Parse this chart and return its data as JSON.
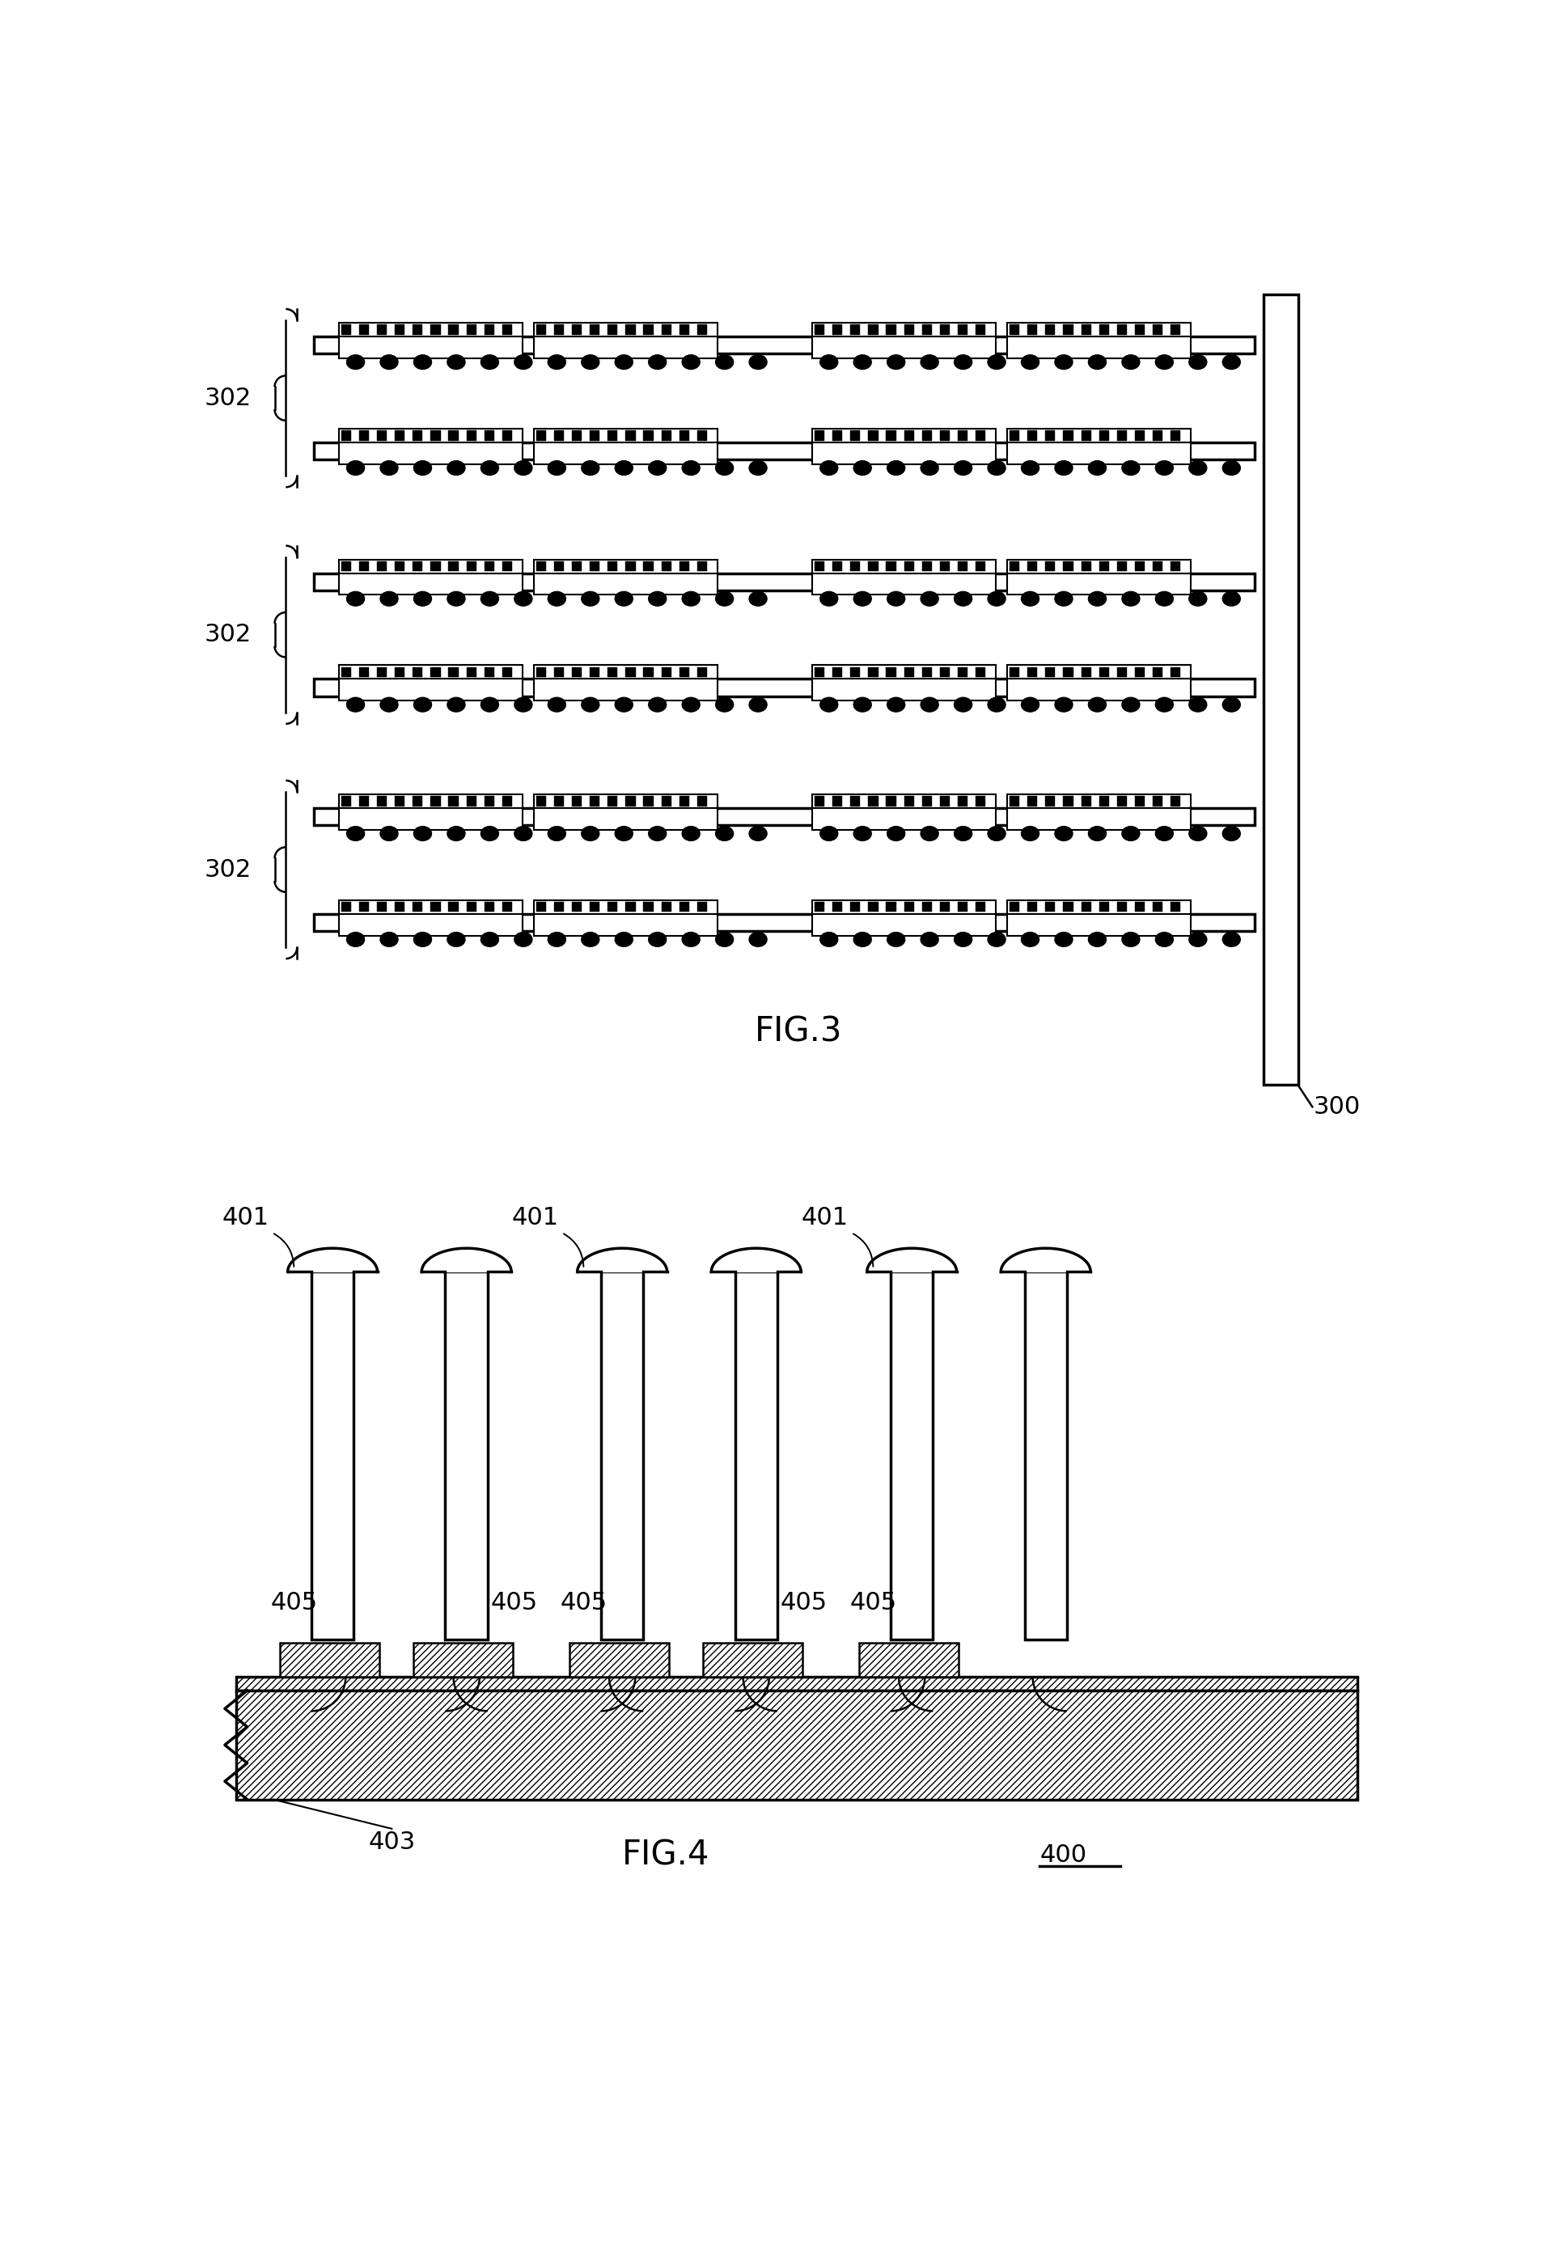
{
  "fig_width": 19.26,
  "fig_height": 27.73,
  "bg_color": "#ffffff",
  "line_color": "#000000",
  "fig3_label": "FIG.3",
  "fig4_label": "FIG.4",
  "label_300": "300",
  "label_302": "302",
  "label_400": "400",
  "label_401": "401",
  "label_403": "403",
  "label_405": "405",
  "font_size_label": 22,
  "font_size_fig": 30
}
